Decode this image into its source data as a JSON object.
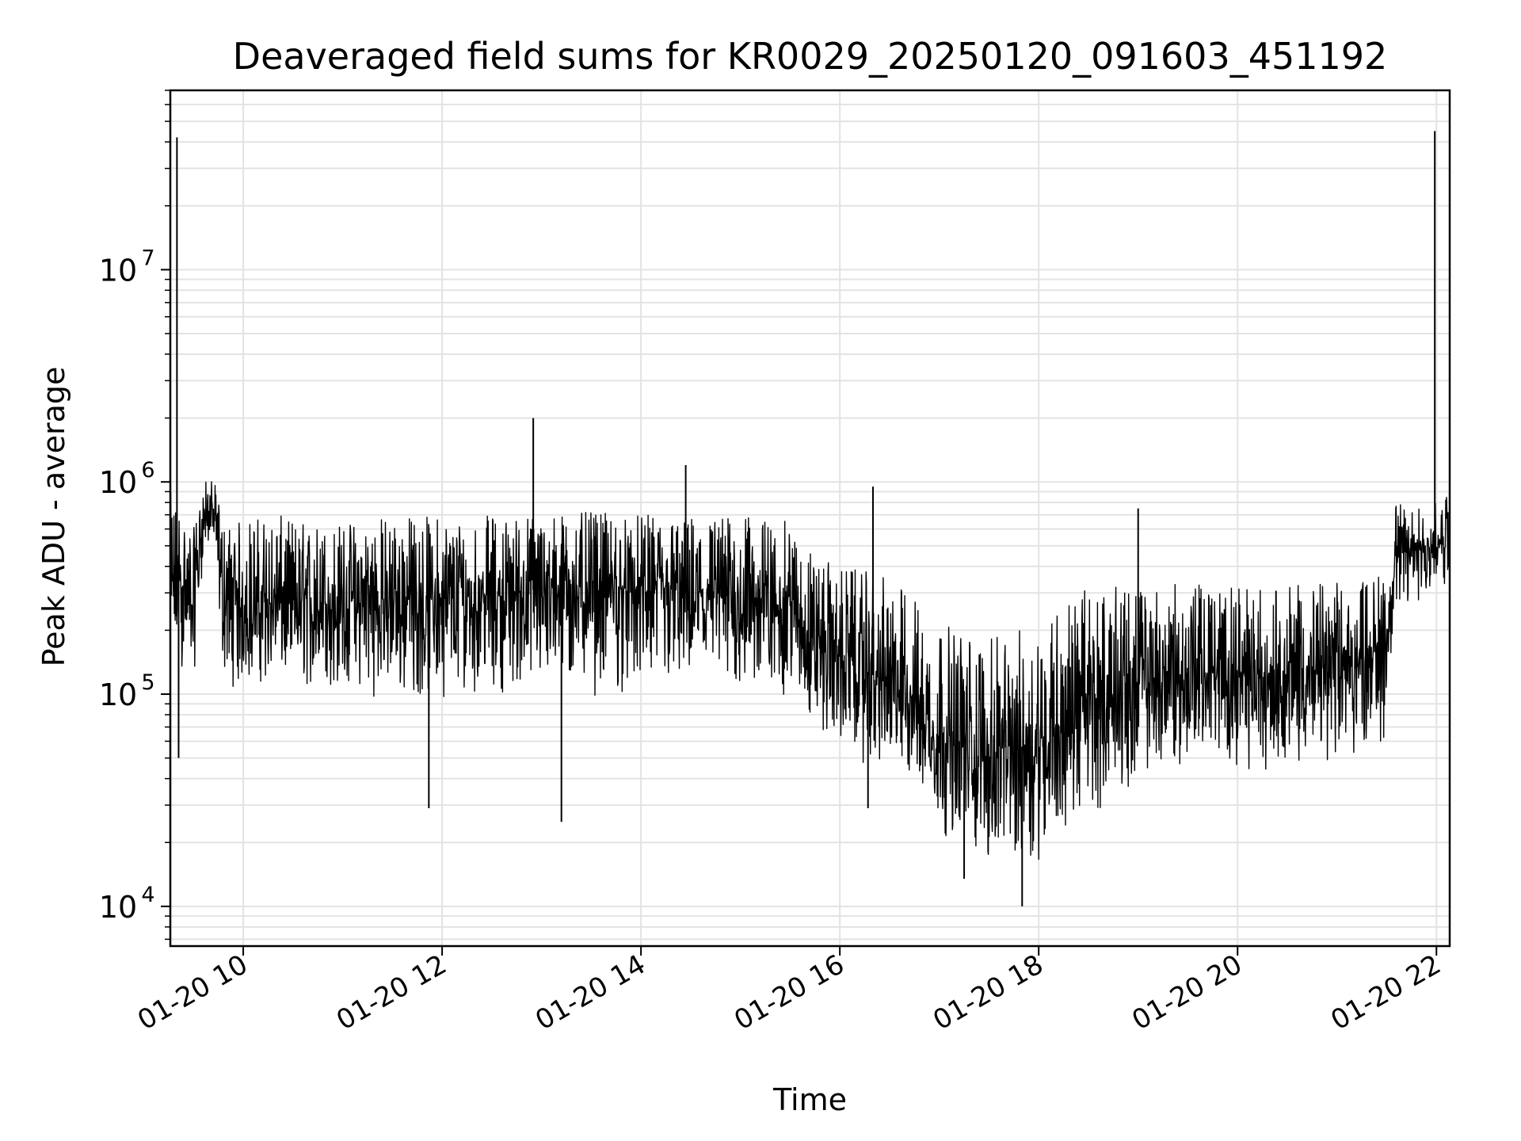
{
  "chart_data": {
    "type": "line",
    "title": "Deaveraged field sums for KR0029_20250120_091603_451192",
    "xlabel": "Time",
    "ylabel": "Peak ADU - average",
    "y_scale": "log",
    "xlim": [
      "2025-01-20 09:16",
      "2025-01-20 22:08"
    ],
    "ylim": [
      6500,
      70000000
    ],
    "x_ticks": [
      {
        "value": "2025-01-20 10:00",
        "label": "01-20 10"
      },
      {
        "value": "2025-01-20 12:00",
        "label": "01-20 12"
      },
      {
        "value": "2025-01-20 14:00",
        "label": "01-20 14"
      },
      {
        "value": "2025-01-20 16:00",
        "label": "01-20 16"
      },
      {
        "value": "2025-01-20 18:00",
        "label": "01-20 18"
      },
      {
        "value": "2025-01-20 20:00",
        "label": "01-20 20"
      },
      {
        "value": "2025-01-20 22:00",
        "label": "01-20 22"
      }
    ],
    "y_ticks": [
      {
        "value": 10000,
        "base": "10",
        "exp": "4"
      },
      {
        "value": 100000,
        "base": "10",
        "exp": "5"
      },
      {
        "value": 1000000,
        "base": "10",
        "exp": "6"
      },
      {
        "value": 10000000,
        "base": "10",
        "exp": "7"
      }
    ],
    "grid": true,
    "line_color": "#000000",
    "grid_color": "#e3e3e3",
    "series": [
      {
        "x": [
          "2025-01-20 09:16",
          "2025-01-20 09:20",
          "2025-01-20 09:24",
          "2025-01-20 09:30",
          "2025-01-20 09:36",
          "2025-01-20 09:42",
          "2025-01-20 09:48",
          "2025-01-20 09:56",
          "2025-01-20 10:05",
          "2025-01-20 10:20",
          "2025-01-20 10:40",
          "2025-01-20 11:00",
          "2025-01-20 11:20",
          "2025-01-20 11:40",
          "2025-01-20 12:00",
          "2025-01-20 12:20",
          "2025-01-20 12:40",
          "2025-01-20 12:54",
          "2025-01-20 13:10",
          "2025-01-20 13:30",
          "2025-01-20 13:50",
          "2025-01-20 14:10",
          "2025-01-20 14:30",
          "2025-01-20 14:50",
          "2025-01-20 15:10",
          "2025-01-20 15:30",
          "2025-01-20 15:40",
          "2025-01-20 15:50",
          "2025-01-20 16:00",
          "2025-01-20 16:15",
          "2025-01-20 16:30",
          "2025-01-20 16:45",
          "2025-01-20 16:50",
          "2025-01-20 17:00",
          "2025-01-20 17:15",
          "2025-01-20 17:30",
          "2025-01-20 17:45",
          "2025-01-20 18:00",
          "2025-01-20 18:15",
          "2025-01-20 18:30",
          "2025-01-20 18:45",
          "2025-01-20 19:00",
          "2025-01-20 19:20",
          "2025-01-20 19:40",
          "2025-01-20 20:00",
          "2025-01-20 20:20",
          "2025-01-20 20:40",
          "2025-01-20 21:00",
          "2025-01-20 21:20",
          "2025-01-20 21:30",
          "2025-01-20 21:35",
          "2025-01-20 21:45",
          "2025-01-20 21:55",
          "2025-01-20 22:00",
          "2025-01-20 22:05",
          "2025-01-20 22:08"
        ],
        "y": [
          300000,
          350000,
          320000,
          280000,
          700000,
          750000,
          300000,
          250000,
          260000,
          270000,
          260000,
          270000,
          275000,
          280000,
          280000,
          290000,
          300000,
          310000,
          320000,
          320000,
          310000,
          310000,
          300000,
          290000,
          280000,
          270000,
          200000,
          170000,
          150000,
          130000,
          110000,
          100000,
          80000,
          60000,
          55000,
          50000,
          55000,
          60000,
          75000,
          90000,
          100000,
          110000,
          120000,
          125000,
          120000,
          125000,
          130000,
          140000,
          150000,
          180000,
          450000,
          480000,
          500000,
          500000,
          520000,
          520000
        ],
        "band_low": [
          150000,
          130000,
          120000,
          110000,
          450000,
          480000,
          120000,
          100000,
          110000,
          110000,
          100000,
          100000,
          95000,
          90000,
          95000,
          100000,
          100000,
          100000,
          100000,
          95000,
          95000,
          95000,
          100000,
          95000,
          95000,
          90000,
          75000,
          60000,
          55000,
          45000,
          40000,
          35000,
          28000,
          22000,
          18000,
          15000,
          15000,
          16000,
          20000,
          25000,
          32000,
          38000,
          45000,
          45000,
          45000,
          42000,
          45000,
          48000,
          50000,
          60000,
          250000,
          250000,
          280000,
          300000,
          300000,
          280000
        ],
        "band_high": [
          900000,
          850000,
          700000,
          600000,
          1000000,
          1050000,
          650000,
          650000,
          700000,
          700000,
          650000,
          650000,
          700000,
          700000,
          700000,
          700000,
          700000,
          720000,
          720000,
          720000,
          700000,
          700000,
          700000,
          700000,
          680000,
          650000,
          500000,
          430000,
          400000,
          380000,
          350000,
          300000,
          250000,
          220000,
          200000,
          180000,
          200000,
          220000,
          280000,
          320000,
          320000,
          320000,
          330000,
          330000,
          320000,
          320000,
          330000,
          340000,
          350000,
          400000,
          800000,
          750000,
          800000,
          800000,
          850000,
          900000
        ],
        "spikes": [
          {
            "x": "2025-01-20 09:20",
            "y": 42000000
          },
          {
            "x": "2025-01-20 09:21",
            "y": 50000
          },
          {
            "x": "2025-01-20 12:55",
            "y": 2000000
          },
          {
            "x": "2025-01-20 14:27",
            "y": 1200000
          },
          {
            "x": "2025-01-20 13:12",
            "y": 25000
          },
          {
            "x": "2025-01-20 11:52",
            "y": 29000
          },
          {
            "x": "2025-01-20 16:17",
            "y": 29000
          },
          {
            "x": "2025-01-20 17:50",
            "y": 10000
          },
          {
            "x": "2025-01-20 17:15",
            "y": 13500
          },
          {
            "x": "2025-01-20 19:00",
            "y": 750000
          },
          {
            "x": "2025-01-20 21:59",
            "y": 45000000
          },
          {
            "x": "2025-01-20 16:20",
            "y": 950000
          }
        ]
      }
    ]
  }
}
